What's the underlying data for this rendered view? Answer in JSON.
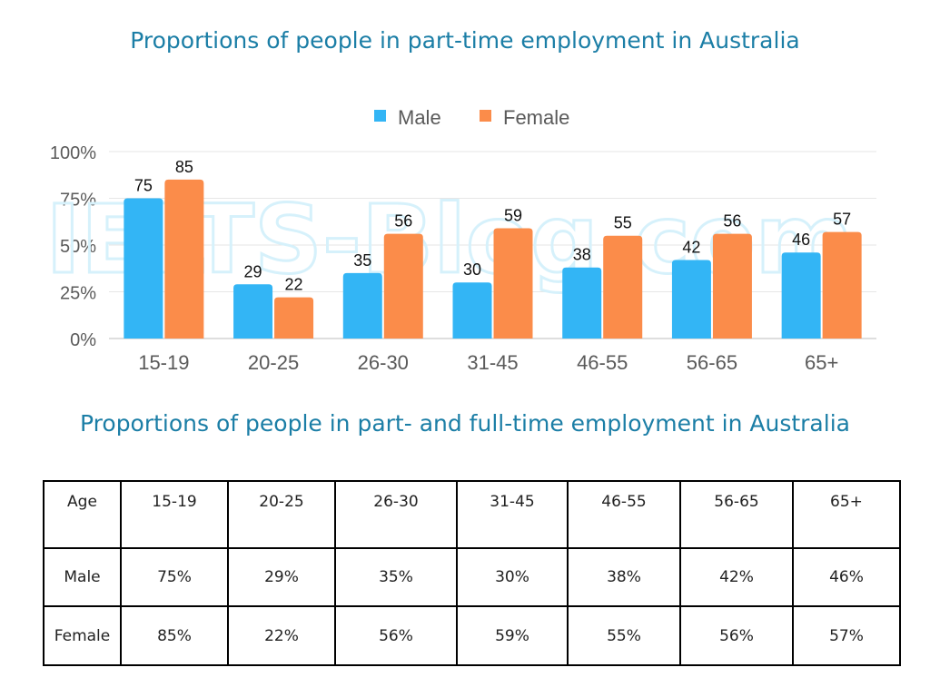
{
  "title": "Proportions of people in part-time employment in Australia",
  "table_title": "Proportions of people in part- and full-time employment in Australia",
  "chart_data": {
    "type": "bar",
    "title": "Proportions of people in part-time employment in Australia",
    "categories": [
      "15-19",
      "20-25",
      "26-30",
      "31-45",
      "46-55",
      "56-65",
      "65+"
    ],
    "series": [
      {
        "name": "Male",
        "values": [
          75,
          29,
          35,
          30,
          38,
          42,
          46
        ],
        "color": "#33b5f5"
      },
      {
        "name": "Female",
        "values": [
          85,
          22,
          56,
          59,
          55,
          56,
          57
        ],
        "color": "#fb8c4a"
      }
    ],
    "ylim": [
      0,
      100
    ],
    "yticks": [
      "0%",
      "25%",
      "50%",
      "75%",
      "100%"
    ],
    "ytick_values": [
      0,
      25,
      50,
      75,
      100
    ],
    "xlabel": "",
    "ylabel": "",
    "legend": "top-center",
    "grid": true,
    "watermark": "IELTS-Blog.com"
  },
  "table": {
    "header_label": "Age",
    "ages": [
      "15-19",
      "20-25",
      "26-30",
      "31-45",
      "46-55",
      "56-65",
      "65+"
    ],
    "rows": [
      {
        "label": "Male",
        "cells": [
          "75%",
          "29%",
          "35%",
          "30%",
          "38%",
          "42%",
          "46%"
        ]
      },
      {
        "label": "Female",
        "cells": [
          "85%",
          "22%",
          "56%",
          "59%",
          "55%",
          "56%",
          "57%"
        ]
      }
    ]
  }
}
